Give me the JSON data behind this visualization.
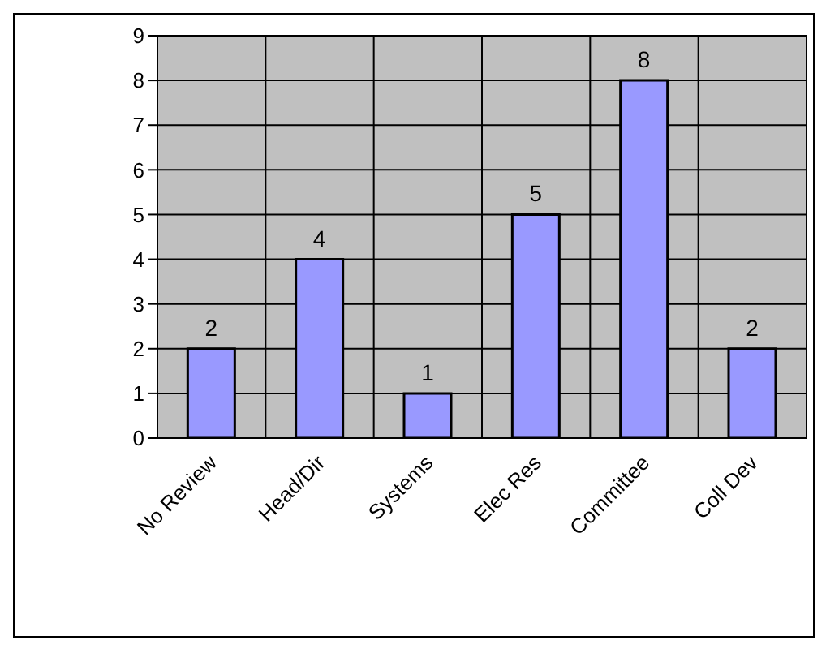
{
  "chart_data": {
    "type": "bar",
    "categories": [
      "No Review",
      "Head/Dir",
      "Systems",
      "Elec Res",
      "Committee",
      "Coll Dev"
    ],
    "values": [
      2,
      4,
      1,
      5,
      8,
      2
    ],
    "color": "#9999ff",
    "ylim": [
      0,
      9
    ],
    "yticks": [
      0,
      1,
      2,
      3,
      4,
      5,
      6,
      7,
      8,
      9
    ],
    "grid": true,
    "data_labels": true
  }
}
